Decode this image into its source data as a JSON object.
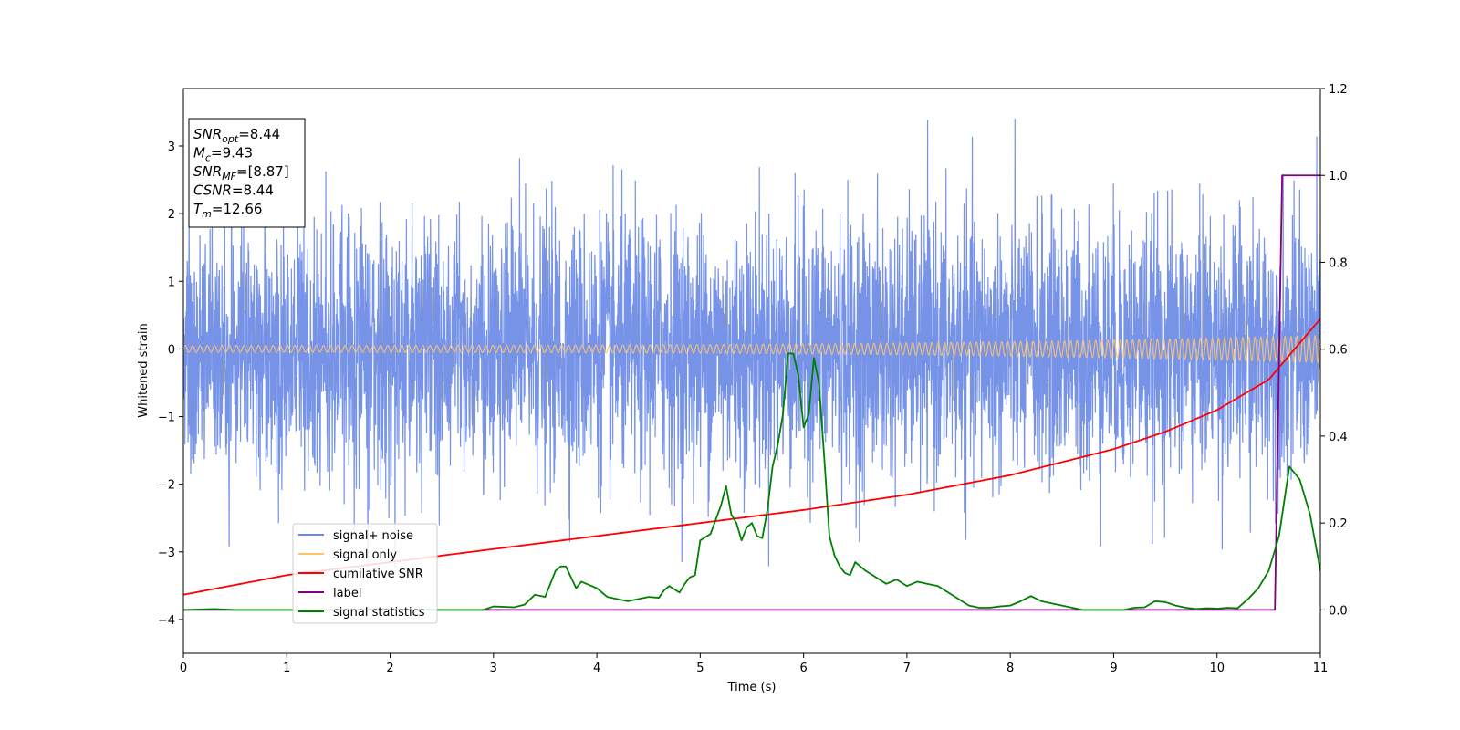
{
  "chart_data": {
    "type": "line",
    "xlabel": "Time (s)",
    "ylabel": "Whitened strain",
    "xlim": [
      0,
      11
    ],
    "ylim_left": [
      -4.5,
      3.85
    ],
    "ylim_right": [
      -0.1,
      1.2
    ],
    "x_ticks": [
      "0",
      "1",
      "2",
      "3",
      "4",
      "5",
      "6",
      "7",
      "8",
      "9",
      "10",
      "11"
    ],
    "y_ticks_left": [
      "−4",
      "−3",
      "−2",
      "−1",
      "0",
      "1",
      "2",
      "3"
    ],
    "y_ticks_right": [
      "0.0",
      "0.2",
      "0.4",
      "0.6",
      "0.8",
      "1.0",
      "1.2"
    ],
    "grid": false,
    "legend_location": "lower-left",
    "stats_box": {
      "location": "upper-left",
      "lines": [
        {
          "var": "SNR",
          "sub": "opt",
          "value": "=8.44"
        },
        {
          "var": "M",
          "sub": "c",
          "value": "=9.43"
        },
        {
          "var": "SNR",
          "sub": "MF",
          "value": "=[8.87]"
        },
        {
          "var": "CSNR",
          "sub": "",
          "value": "=8.44"
        },
        {
          "var": "T",
          "sub": "m",
          "value": "=12.66"
        }
      ]
    },
    "series": [
      {
        "name": "signal+ noise",
        "color": "#6a8ae6",
        "axis": "left",
        "style": "unit-variance whitened noise, peaks about ±3.5",
        "amplitude_min": -4.15,
        "amplitude_max": 3.45
      },
      {
        "name": "signal only",
        "color": "#ffc36b",
        "axis": "left",
        "style": "chirp oscillation with growing amplitude",
        "amplitude_start": 0.05,
        "amplitude_end": 0.2
      },
      {
        "name": "cumilative SNR",
        "color": "#ff0000",
        "axis": "right",
        "x": [
          0,
          1,
          2,
          3,
          4,
          5,
          6,
          7,
          8,
          9,
          9.5,
          10,
          10.5,
          11
        ],
        "y": [
          0.035,
          0.08,
          0.11,
          0.14,
          0.17,
          0.2,
          0.23,
          0.265,
          0.31,
          0.37,
          0.41,
          0.46,
          0.53,
          0.67
        ]
      },
      {
        "name": "label",
        "color": "#800080",
        "axis": "right",
        "x": [
          0,
          10.56,
          10.63,
          11
        ],
        "y": [
          0,
          0,
          1,
          1
        ]
      },
      {
        "name": "signal statistics",
        "color": "#008000",
        "axis": "right",
        "x": [
          0,
          0.3,
          0.5,
          1.0,
          1.5,
          2.0,
          2.5,
          2.9,
          3.0,
          3.2,
          3.3,
          3.4,
          3.5,
          3.6,
          3.65,
          3.7,
          3.8,
          3.85,
          3.9,
          4.0,
          4.1,
          4.2,
          4.3,
          4.4,
          4.5,
          4.6,
          4.65,
          4.7,
          4.8,
          4.85,
          4.9,
          4.95,
          5.0,
          5.1,
          5.2,
          5.25,
          5.3,
          5.35,
          5.4,
          5.45,
          5.5,
          5.55,
          5.6,
          5.65,
          5.7,
          5.75,
          5.8,
          5.85,
          5.9,
          5.95,
          6.0,
          6.05,
          6.1,
          6.15,
          6.2,
          6.25,
          6.3,
          6.35,
          6.4,
          6.45,
          6.5,
          6.6,
          6.7,
          6.8,
          6.9,
          7.0,
          7.1,
          7.2,
          7.3,
          7.4,
          7.5,
          7.6,
          7.7,
          7.8,
          7.9,
          8.0,
          8.1,
          8.2,
          8.3,
          8.4,
          8.5,
          8.6,
          8.7,
          8.8,
          8.9,
          9.0,
          9.1,
          9.2,
          9.3,
          9.4,
          9.5,
          9.6,
          9.7,
          9.8,
          9.9,
          10.0,
          10.1,
          10.2,
          10.3,
          10.4,
          10.5,
          10.6,
          10.7,
          10.8,
          10.9,
          11.0
        ],
        "y": [
          0.0,
          0.002,
          0.0,
          0.0,
          0.0,
          0.002,
          0.0,
          0.0,
          0.008,
          0.006,
          0.012,
          0.035,
          0.03,
          0.09,
          0.1,
          0.1,
          0.05,
          0.065,
          0.06,
          0.05,
          0.03,
          0.025,
          0.02,
          0.025,
          0.03,
          0.028,
          0.045,
          0.055,
          0.04,
          0.06,
          0.075,
          0.08,
          0.16,
          0.175,
          0.24,
          0.285,
          0.22,
          0.2,
          0.16,
          0.19,
          0.2,
          0.17,
          0.165,
          0.23,
          0.33,
          0.38,
          0.45,
          0.59,
          0.59,
          0.54,
          0.42,
          0.45,
          0.58,
          0.52,
          0.35,
          0.17,
          0.125,
          0.1,
          0.085,
          0.08,
          0.11,
          0.09,
          0.075,
          0.06,
          0.07,
          0.055,
          0.065,
          0.06,
          0.055,
          0.04,
          0.025,
          0.01,
          0.005,
          0.005,
          0.008,
          0.01,
          0.02,
          0.032,
          0.02,
          0.015,
          0.01,
          0.005,
          0.0,
          0.0,
          0.0,
          0.0,
          0.0,
          0.005,
          0.006,
          0.02,
          0.018,
          0.01,
          0.005,
          0.002,
          0.004,
          0.003,
          0.005,
          0.004,
          0.025,
          0.05,
          0.09,
          0.17,
          0.33,
          0.3,
          0.22,
          0.09
        ]
      }
    ]
  }
}
